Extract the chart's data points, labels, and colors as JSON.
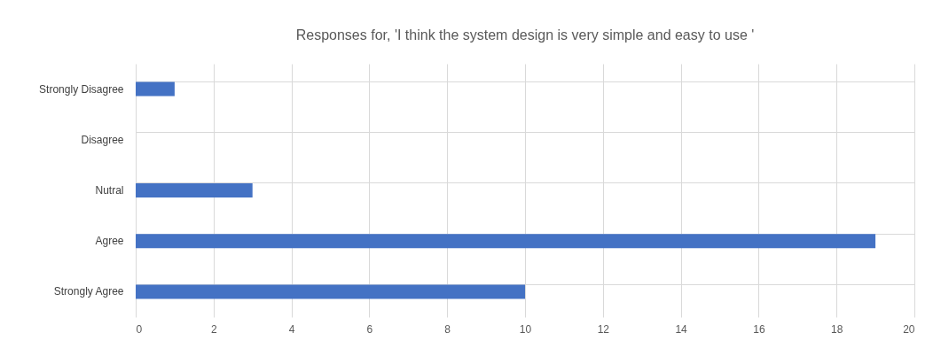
{
  "chart_data": {
    "type": "bar",
    "orientation": "horizontal",
    "title": "Responses for, 'I think the system design is very simple and easy to use '",
    "categories": [
      "Strongly Disagree",
      "Disagree",
      "Nutral",
      "Agree",
      "Strongly Agree"
    ],
    "values": [
      1,
      0,
      3,
      19,
      10
    ],
    "color": "#4472c4",
    "xlim": [
      0,
      20
    ],
    "xticks": [
      0,
      2,
      4,
      6,
      8,
      10,
      12,
      14,
      16,
      18,
      20
    ],
    "grid": true
  }
}
